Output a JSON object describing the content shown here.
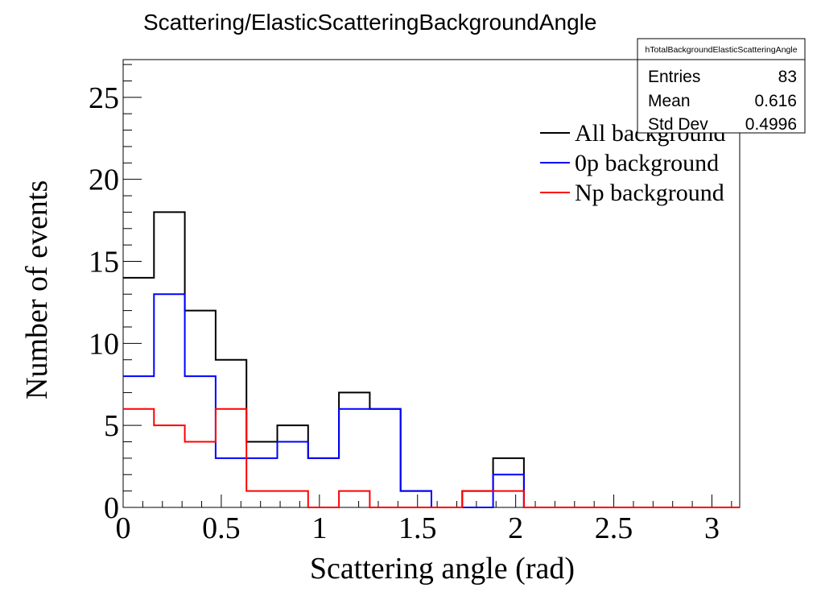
{
  "chart_data": {
    "type": "histogram",
    "title": "Scattering/ElasticScatteringBackgroundAngle",
    "xlabel": "Scattering angle (rad)",
    "ylabel": "Number of events",
    "xlim": [
      0,
      3.1416
    ],
    "ylim": [
      0,
      27.3
    ],
    "bin_edges": [
      0,
      0.15708,
      0.31416,
      0.47124,
      0.62832,
      0.7854,
      0.94248,
      1.09956,
      1.25664,
      1.41372,
      1.5708,
      1.72788,
      1.88496,
      2.04204,
      2.19911,
      2.35619,
      2.51327,
      2.67035,
      2.82743,
      2.98451,
      3.14159
    ],
    "xticks": [
      0,
      0.5,
      1,
      1.5,
      2,
      2.5,
      3
    ],
    "xtick_labels": [
      "0",
      "0.5",
      "1",
      "1.5",
      "2",
      "2.5",
      "3"
    ],
    "yticks": [
      0,
      5,
      10,
      15,
      20,
      25
    ],
    "ytick_labels": [
      "0",
      "5",
      "10",
      "15",
      "20",
      "25"
    ],
    "series": [
      {
        "name": "All background",
        "color": "#000000",
        "values": [
          14,
          18,
          12,
          9,
          4,
          5,
          3,
          7,
          6,
          1,
          0,
          1,
          3,
          0,
          0,
          0,
          0,
          0,
          0,
          0
        ]
      },
      {
        "name": "0p background",
        "color": "#0000ff",
        "values": [
          8,
          13,
          8,
          3,
          3,
          4,
          3,
          6,
          6,
          1,
          0,
          0,
          2,
          0,
          0,
          0,
          0,
          0,
          0,
          0
        ]
      },
      {
        "name": "Np background",
        "color": "#ff0000",
        "values": [
          6,
          5,
          4,
          6,
          1,
          1,
          0,
          1,
          0,
          0,
          0,
          1,
          1,
          0,
          0,
          0,
          0,
          0,
          0,
          0
        ]
      }
    ],
    "legend_position": "top-right",
    "grid": false
  },
  "stats_box": {
    "name": "hTotalBackgroundElasticScatteringAngle",
    "rows": [
      {
        "label": "Entries",
        "value": "83"
      },
      {
        "label": "Mean",
        "value": "0.616"
      },
      {
        "label": "Std Dev",
        "value": "0.4996"
      }
    ]
  }
}
